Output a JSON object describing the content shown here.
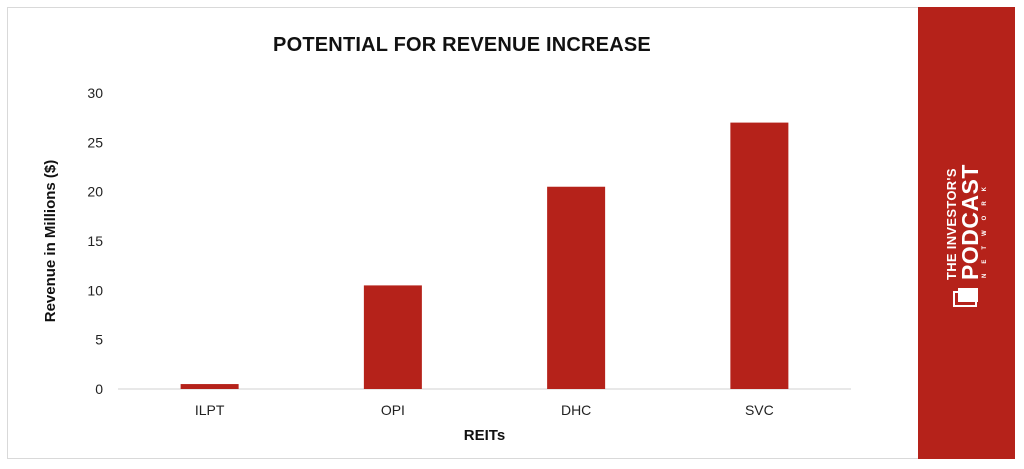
{
  "chart_data": {
    "type": "bar",
    "title": "POTENTIAL FOR REVENUE INCREASE",
    "xlabel": "REITs",
    "ylabel": "Revenue in Millions ($)",
    "categories": [
      "ILPT",
      "OPI",
      "DHC",
      "SVC"
    ],
    "values": [
      0.5,
      10.5,
      20.5,
      27
    ],
    "ylim": [
      0,
      30
    ],
    "yticks": [
      0,
      5,
      10,
      15,
      20,
      25,
      30
    ],
    "grid": false,
    "bar_color": "#b5221a"
  },
  "brand": {
    "line1": "THE INVESTOR'S",
    "line2": "PODCAST",
    "line3": "NETWORK",
    "background": "#b5221a"
  }
}
